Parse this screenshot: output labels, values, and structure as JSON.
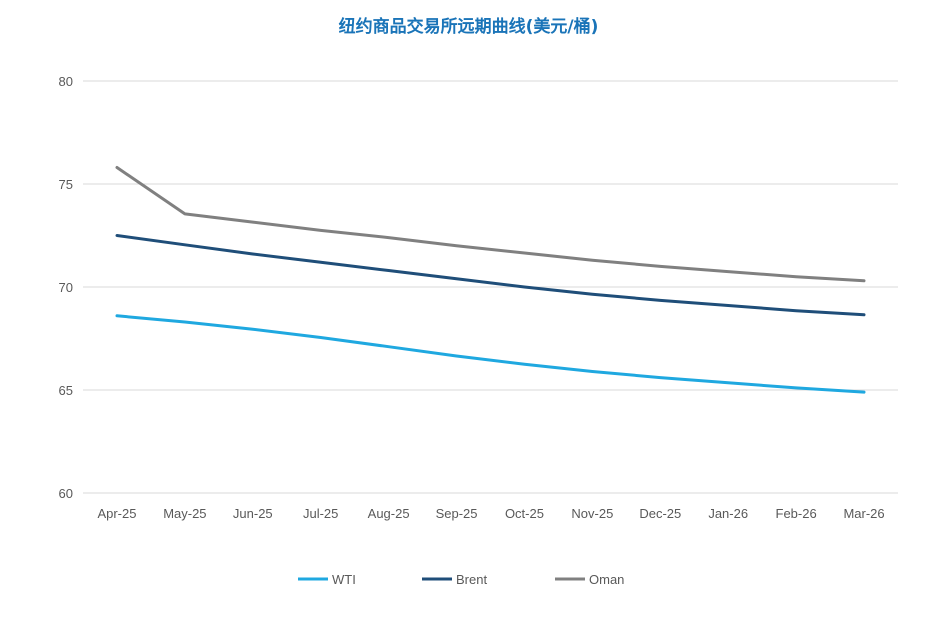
{
  "chart_data": {
    "type": "line",
    "title": "纽约商品交易所远期曲线(美元/桶)",
    "xlabel": "",
    "ylabel": "",
    "categories": [
      "Apr-25",
      "May-25",
      "Jun-25",
      "Jul-25",
      "Aug-25",
      "Sep-25",
      "Oct-25",
      "Nov-25",
      "Dec-25",
      "Jan-26",
      "Feb-26",
      "Mar-26"
    ],
    "ylim": [
      60,
      80
    ],
    "yticks": [
      60,
      65,
      70,
      75,
      80
    ],
    "grid": true,
    "legend_position": "bottom",
    "series": [
      {
        "name": "WTI",
        "color": "#1fa8e0",
        "values": [
          68.6,
          68.3,
          67.95,
          67.55,
          67.1,
          66.65,
          66.25,
          65.9,
          65.6,
          65.35,
          65.1,
          64.9
        ]
      },
      {
        "name": "Brent",
        "color": "#1f4e79",
        "values": [
          72.5,
          72.05,
          71.6,
          71.2,
          70.8,
          70.4,
          70.0,
          69.65,
          69.35,
          69.1,
          68.85,
          68.65
        ]
      },
      {
        "name": "Oman",
        "color": "#808080",
        "values": [
          75.8,
          73.55,
          73.15,
          72.75,
          72.4,
          72.0,
          71.65,
          71.3,
          71.0,
          70.75,
          70.5,
          70.3
        ]
      }
    ]
  }
}
